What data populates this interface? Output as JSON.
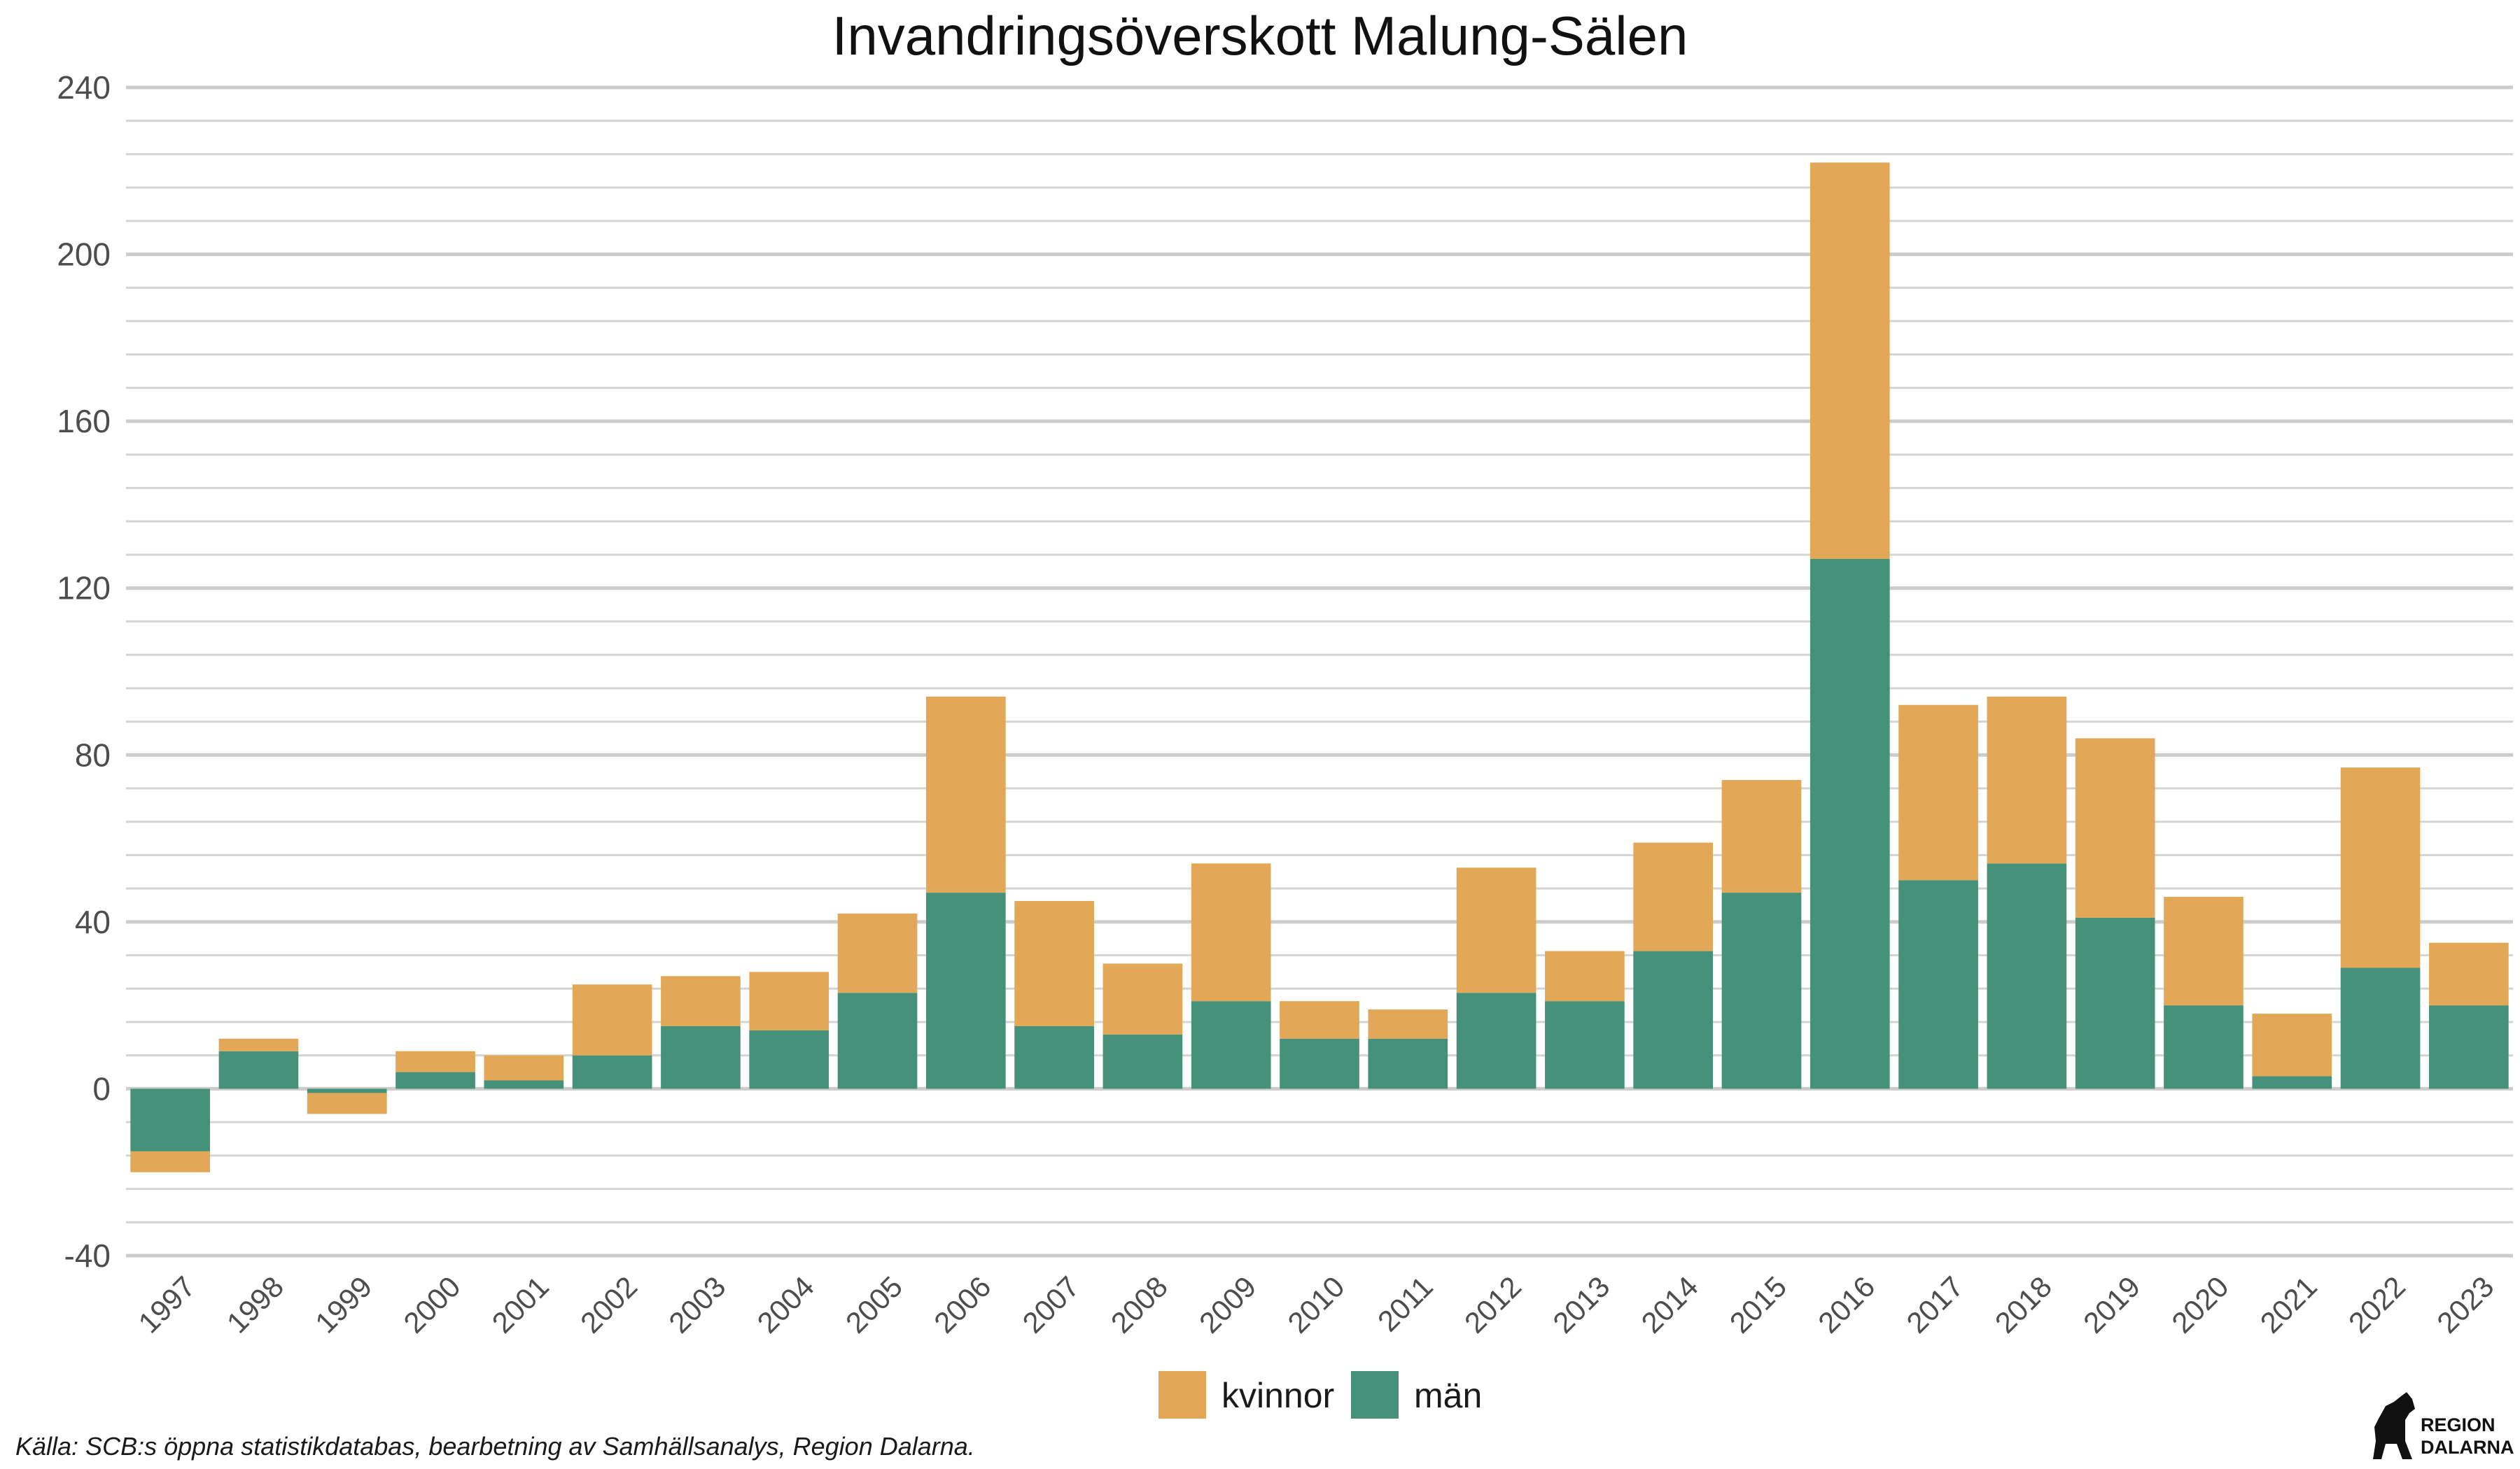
{
  "chart_data": {
    "type": "bar",
    "stacked": true,
    "title": "Invandringsöverskott Malung-Sälen",
    "xlabel": "",
    "ylabel": "",
    "ylim": [
      -40,
      240
    ],
    "yticks": [
      -40,
      0,
      40,
      80,
      120,
      160,
      200,
      240
    ],
    "grid": true,
    "legend_position": "bottom",
    "categories": [
      "1997",
      "1998",
      "1999",
      "2000",
      "2001",
      "2002",
      "2003",
      "2004",
      "2005",
      "2006",
      "2007",
      "2008",
      "2009",
      "2010",
      "2011",
      "2012",
      "2013",
      "2014",
      "2015",
      "2016",
      "2017",
      "2018",
      "2019",
      "2020",
      "2021",
      "2022",
      "2023"
    ],
    "series": [
      {
        "name": "män",
        "color": "#45917a",
        "values": [
          -15,
          9,
          -6,
          4,
          2,
          8,
          15,
          14,
          23,
          47,
          15,
          13,
          21,
          12,
          12,
          23,
          21,
          33,
          47,
          127,
          50,
          54,
          41,
          20,
          3,
          29,
          20
        ]
      },
      {
        "name": "kvinnor",
        "color": "#e2a857",
        "values": [
          -5,
          3,
          5,
          5,
          6,
          17,
          12,
          14,
          19,
          47,
          30,
          17,
          33,
          9,
          7,
          30,
          12,
          26,
          27,
          95,
          42,
          40,
          43,
          26,
          15,
          48,
          15
        ]
      }
    ],
    "legend_order": [
      "kvinnor",
      "män"
    ]
  },
  "source_note": "Källa: SCB:s öppna statistikdatabas, bearbetning av Samhällsanalys, Region Dalarna.",
  "logo": {
    "line1": "REGION",
    "line2": "DALARNA"
  }
}
